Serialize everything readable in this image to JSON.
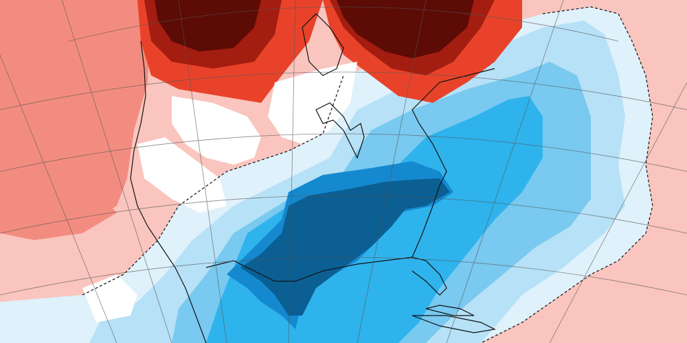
{
  "map": {
    "type": "temperature-anomaly-map",
    "region": "North America",
    "labels": [],
    "colors": {
      "background": "#ffffff",
      "warm_1": "#f9c5be",
      "warm_2": "#f38c80",
      "warm_3": "#e8432a",
      "warm_4": "#a31d10",
      "warm_5": "#5c0b05",
      "cold_1": "#dff1fb",
      "cold_2": "#b7e1f6",
      "cold_3": "#79c9f0",
      "cold_4": "#2fb3ec",
      "cold_5": "#1589cf",
      "cold_6": "#0b5f93",
      "coastline": "#111111",
      "grid": "#555555"
    }
  }
}
